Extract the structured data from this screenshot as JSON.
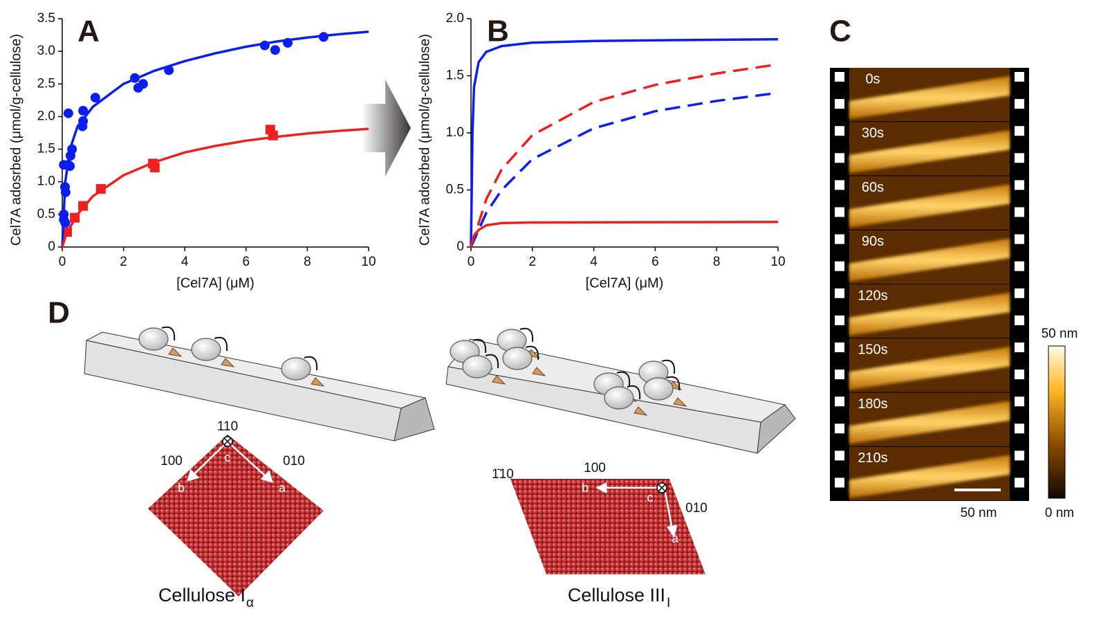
{
  "chart_data": [
    {
      "type": "scatter",
      "panel": "A",
      "y_label": "Cel7A adosrbed (μmol/g-cellulose)",
      "x_label": "[Cel7A] (μM)",
      "xlim": [
        0,
        10
      ],
      "xticks": [
        0,
        2,
        4,
        6,
        8,
        10
      ],
      "ylim": [
        0,
        3.5
      ],
      "yticks": [
        0,
        0.5,
        {
          "value": 1,
          "label": "1.0"
        },
        1.5,
        {
          "value": 2,
          "label": "2.0"
        },
        2.5,
        {
          "value": 3,
          "label": "3.0"
        },
        3.5
      ],
      "series": [
        {
          "mode": "markers",
          "marker": "circle",
          "color": "#0b1ef0",
          "x": [
            0.05,
            0.05,
            0.1,
            0.09,
            0.11,
            0.05,
            0.2,
            0.27,
            0.32,
            0.2,
            0.25,
            0.68,
            0.68,
            0.66,
            1.08,
            2.37,
            2.48,
            2.64,
            3.48,
            6.61,
            6.95,
            7.36,
            8.53
          ],
          "values": [
            0.5,
            0.42,
            0.37,
            0.92,
            0.84,
            1.26,
            1.26,
            1.4,
            1.5,
            2.05,
            1.24,
            1.93,
            2.09,
            1.85,
            2.29,
            2.59,
            2.44,
            2.5,
            2.71,
            3.09,
            3.02,
            3.13,
            3.22
          ]
        },
        {
          "mode": "markers",
          "marker": "square",
          "color": "#ee1f1f",
          "x": [
            0.16,
            0.41,
            0.68,
            1.26,
            2.96,
            3.02,
            6.79,
            6.88
          ],
          "values": [
            0.23,
            0.45,
            0.63,
            0.89,
            1.28,
            1.22,
            1.8,
            1.71
          ]
        },
        {
          "mode": "line",
          "color": "#0b1ef0",
          "x": [
            0,
            0.1,
            0.25,
            0.5,
            1,
            2,
            3,
            4,
            5,
            6,
            7,
            8,
            9,
            10
          ],
          "values": [
            0,
            1.0,
            1.5,
            1.85,
            2.15,
            2.5,
            2.7,
            2.85,
            2.97,
            3.07,
            3.15,
            3.21,
            3.26,
            3.3
          ]
        },
        {
          "mode": "line",
          "color": "#ee1f1f",
          "x": [
            0,
            0.1,
            0.25,
            0.5,
            1,
            2,
            3,
            4,
            5,
            6,
            7,
            8,
            9,
            10
          ],
          "values": [
            0,
            0.15,
            0.3,
            0.5,
            0.78,
            1.1,
            1.3,
            1.45,
            1.55,
            1.63,
            1.69,
            1.74,
            1.78,
            1.81
          ]
        }
      ]
    },
    {
      "type": "line",
      "panel": "B",
      "y_label": "Cel7A adosrbed (μmol/g-cellulose)",
      "x_label": "[Cel7A] (μM)",
      "xlim": [
        0,
        10
      ],
      "xticks": [
        0,
        2,
        4,
        6,
        8,
        10
      ],
      "ylim": [
        0,
        2
      ],
      "yticks": [
        0,
        0.5,
        {
          "value": 1,
          "label": "1.0"
        },
        1.5,
        {
          "value": 2,
          "label": "2.0"
        }
      ],
      "series": [
        {
          "mode": "line",
          "color": "#0b1ef0",
          "dash": false,
          "x": [
            0,
            0.05,
            0.1,
            0.25,
            0.5,
            1,
            2,
            4,
            6,
            10
          ],
          "values": [
            0,
            1.0,
            1.4,
            1.62,
            1.71,
            1.76,
            1.79,
            1.805,
            1.81,
            1.82
          ]
        },
        {
          "mode": "line",
          "color": "#ee1f1f",
          "dash": true,
          "x": [
            0,
            0.5,
            1,
            2,
            4,
            6,
            8,
            10
          ],
          "values": [
            0,
            0.42,
            0.68,
            0.98,
            1.27,
            1.42,
            1.52,
            1.6
          ]
        },
        {
          "mode": "line",
          "color": "#0b1ef0",
          "dash": true,
          "x": [
            0,
            0.5,
            1,
            2,
            4,
            6,
            8,
            10
          ],
          "values": [
            0,
            0.3,
            0.5,
            0.77,
            1.04,
            1.19,
            1.28,
            1.35
          ]
        },
        {
          "mode": "line",
          "color": "#ee1f1f",
          "dash": false,
          "x": [
            0,
            0.1,
            0.25,
            0.5,
            1,
            2,
            10
          ],
          "values": [
            0,
            0.1,
            0.15,
            0.19,
            0.21,
            0.215,
            0.22
          ]
        }
      ]
    }
  ],
  "panel_c": {
    "letter": "C",
    "frames": [
      "0s",
      "30s",
      "60s",
      "90s",
      "120s",
      "150s",
      "180s",
      "210s"
    ],
    "scale_bar": "50 nm",
    "colorbar_max": "50 nm",
    "colorbar_min": "0 nm"
  },
  "panel_d": {
    "letter": "D",
    "left": {
      "face": "110",
      "axis_b_face": "100",
      "axis_a_face": "010",
      "c": "c",
      "b": "b",
      "a": "a",
      "caption": "Cellulose I",
      "caption_sub": "α"
    },
    "right": {
      "face": "1̄10",
      "axis_b_face": "100",
      "axis_a_face": "010",
      "c": "c",
      "b": "b",
      "a": "a",
      "caption": "Cellulose III",
      "caption_sub": "I"
    }
  }
}
